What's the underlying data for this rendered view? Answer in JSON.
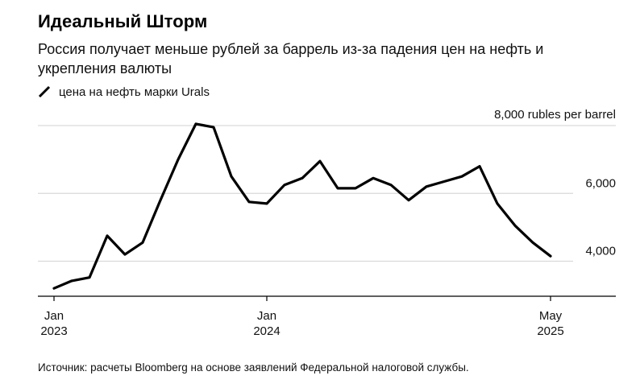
{
  "title": "Идеальный Шторм",
  "subtitle": "Россия получает меньше рублей за баррель из-за падения цен на нефть и укрепления валюты",
  "source": "Источник: расчеты Bloomberg на основе заявлений Федеральной налоговой службы.",
  "colors": {
    "line": "#000000",
    "grid": "#d9d9d9",
    "axis": "#000000"
  },
  "chart_data": {
    "type": "line",
    "title": "Идеальный Шторм",
    "subtitle": "Россия получает меньше рублей за баррель из-за падения цен на нефть и укрепления валюты",
    "xlabel": "",
    "ylabel": "",
    "ylim": [
      2800,
      8500
    ],
    "xlim": [
      "2022-12",
      "2025-07"
    ],
    "grid": true,
    "legend_position": "top-left",
    "y_ticks": [
      {
        "value": 8000,
        "label": "8,000 rubles per barrel"
      },
      {
        "value": 6000,
        "label": "6,000"
      },
      {
        "value": 4000,
        "label": "4,000"
      }
    ],
    "x_ticks": [
      {
        "value": "2023-01",
        "line1": "Jan",
        "line2": "2023"
      },
      {
        "value": "2024-01",
        "line1": "Jan",
        "line2": "2024"
      },
      {
        "value": "2025-05",
        "line1": "May",
        "line2": "2025"
      }
    ],
    "series": [
      {
        "name": "цена на нефть марки Urals",
        "x": [
          "2023-01",
          "2023-02",
          "2023-03",
          "2023-04",
          "2023-05",
          "2023-06",
          "2023-07",
          "2023-08",
          "2023-09",
          "2023-10",
          "2023-11",
          "2023-12",
          "2024-01",
          "2024-02",
          "2024-03",
          "2024-04",
          "2024-05",
          "2024-06",
          "2024-07",
          "2024-08",
          "2024-09",
          "2024-10",
          "2024-11",
          "2024-12",
          "2025-01",
          "2025-02",
          "2025-03",
          "2025-04",
          "2025-05"
        ],
        "y": [
          3200,
          3420,
          3520,
          4750,
          4200,
          4550,
          5800,
          7000,
          8050,
          7950,
          6500,
          5750,
          5700,
          6250,
          6450,
          6950,
          6150,
          6150,
          6450,
          6250,
          5800,
          6200,
          6350,
          6500,
          6800,
          5700,
          5050,
          4550,
          4150
        ]
      }
    ]
  }
}
